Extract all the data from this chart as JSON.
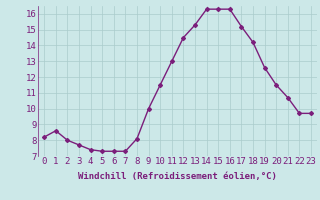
{
  "x": [
    0,
    1,
    2,
    3,
    4,
    5,
    6,
    7,
    8,
    9,
    10,
    11,
    12,
    13,
    14,
    15,
    16,
    17,
    18,
    19,
    20,
    21,
    22,
    23
  ],
  "y": [
    8.2,
    8.6,
    8.0,
    7.7,
    7.4,
    7.3,
    7.3,
    7.3,
    8.1,
    10.0,
    11.5,
    13.0,
    14.5,
    15.3,
    16.3,
    16.3,
    16.3,
    15.2,
    14.2,
    12.6,
    11.5,
    10.7,
    9.7,
    9.7
  ],
  "line_color": "#7B1E7B",
  "marker": "D",
  "marker_size": 2.0,
  "bg_color": "#cce8e8",
  "grid_color": "#aacccc",
  "xlabel": "Windchill (Refroidissement éolien,°C)",
  "ylim": [
    7,
    16.5
  ],
  "xlim": [
    -0.5,
    23.5
  ],
  "yticks": [
    7,
    8,
    9,
    10,
    11,
    12,
    13,
    14,
    15,
    16
  ],
  "xticks": [
    0,
    1,
    2,
    3,
    4,
    5,
    6,
    7,
    8,
    9,
    10,
    11,
    12,
    13,
    14,
    15,
    16,
    17,
    18,
    19,
    20,
    21,
    22,
    23
  ],
  "xlabel_fontsize": 6.5,
  "tick_fontsize": 6.5,
  "line_width": 1.0
}
